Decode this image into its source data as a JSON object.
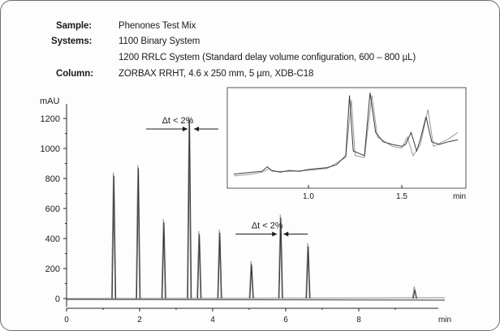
{
  "info": {
    "sample_label": "Sample:",
    "sample_value": "Phenones Test Mix",
    "systems_label": "Systems:",
    "systems_value_1": "1100 Binary System",
    "systems_value_2": "1200 RRLC System (Standard delay volume configuration, 600 – 800 µL)",
    "column_label": "Column:",
    "column_value": "ZORBAX RRHT, 4.6 x 250 mm, 5 µm, XDB-C18"
  },
  "chart_data": [
    {
      "type": "line",
      "ylabel": "mAU",
      "xlabel": "min",
      "xlim": [
        0,
        10
      ],
      "ylim": [
        -50,
        1300
      ],
      "xticks": [
        0,
        2,
        4,
        6,
        8
      ],
      "yticks": [
        0,
        200,
        400,
        600,
        800,
        1000,
        1200
      ],
      "x_unit_label": "min",
      "annotations": [
        {
          "text": "Δt < 2%",
          "x": 3.4,
          "y": 1130
        },
        {
          "text": "Δt < 2%",
          "x": 5.85,
          "y": 430
        }
      ],
      "peaks": [
        {
          "x": 1.28,
          "height": 840
        },
        {
          "x": 1.95,
          "height": 890
        },
        {
          "x": 2.65,
          "height": 530
        },
        {
          "x": 3.35,
          "height": 1210
        },
        {
          "x": 3.62,
          "height": 450
        },
        {
          "x": 4.18,
          "height": 460
        },
        {
          "x": 5.05,
          "height": 250
        },
        {
          "x": 5.85,
          "height": 560
        },
        {
          "x": 6.6,
          "height": 370
        },
        {
          "x": 9.52,
          "height": 80
        }
      ],
      "series": [
        {
          "values_note": "",
          "color": "#333333"
        },
        {
          "values_note": "",
          "color": "#8a8a8a"
        }
      ]
    },
    {
      "type": "line",
      "xlabel": "min",
      "xlim": [
        0.6,
        1.8
      ],
      "xticks": [
        1.0,
        1.5
      ],
      "series_dark": [
        [
          0.6,
          0.1
        ],
        [
          0.7,
          0.12
        ],
        [
          0.75,
          0.13
        ],
        [
          0.78,
          0.18
        ],
        [
          0.8,
          0.14
        ],
        [
          0.85,
          0.12
        ],
        [
          0.9,
          0.14
        ],
        [
          0.95,
          0.13
        ],
        [
          1.0,
          0.15
        ],
        [
          1.05,
          0.16
        ],
        [
          1.1,
          0.17
        ],
        [
          1.15,
          0.2
        ],
        [
          1.2,
          0.3
        ],
        [
          1.22,
          0.95
        ],
        [
          1.24,
          0.35
        ],
        [
          1.3,
          0.3
        ],
        [
          1.33,
          0.98
        ],
        [
          1.36,
          0.55
        ],
        [
          1.4,
          0.45
        ],
        [
          1.45,
          0.42
        ],
        [
          1.5,
          0.4
        ],
        [
          1.52,
          0.42
        ],
        [
          1.55,
          0.55
        ],
        [
          1.58,
          0.35
        ],
        [
          1.6,
          0.48
        ],
        [
          1.63,
          0.72
        ],
        [
          1.66,
          0.45
        ],
        [
          1.7,
          0.42
        ],
        [
          1.75,
          0.45
        ],
        [
          1.8,
          0.47
        ]
      ],
      "series_light": [
        [
          0.6,
          0.08
        ],
        [
          0.7,
          0.1
        ],
        [
          0.75,
          0.12
        ],
        [
          0.79,
          0.16
        ],
        [
          0.81,
          0.13
        ],
        [
          0.9,
          0.13
        ],
        [
          1.0,
          0.14
        ],
        [
          1.1,
          0.16
        ],
        [
          1.2,
          0.28
        ],
        [
          1.23,
          0.9
        ],
        [
          1.25,
          0.3
        ],
        [
          1.3,
          0.28
        ],
        [
          1.34,
          0.95
        ],
        [
          1.37,
          0.5
        ],
        [
          1.45,
          0.4
        ],
        [
          1.5,
          0.38
        ],
        [
          1.53,
          0.5
        ],
        [
          1.56,
          0.3
        ],
        [
          1.6,
          0.42
        ],
        [
          1.64,
          0.8
        ],
        [
          1.67,
          0.4
        ],
        [
          1.75,
          0.48
        ],
        [
          1.8,
          0.55
        ]
      ]
    }
  ]
}
